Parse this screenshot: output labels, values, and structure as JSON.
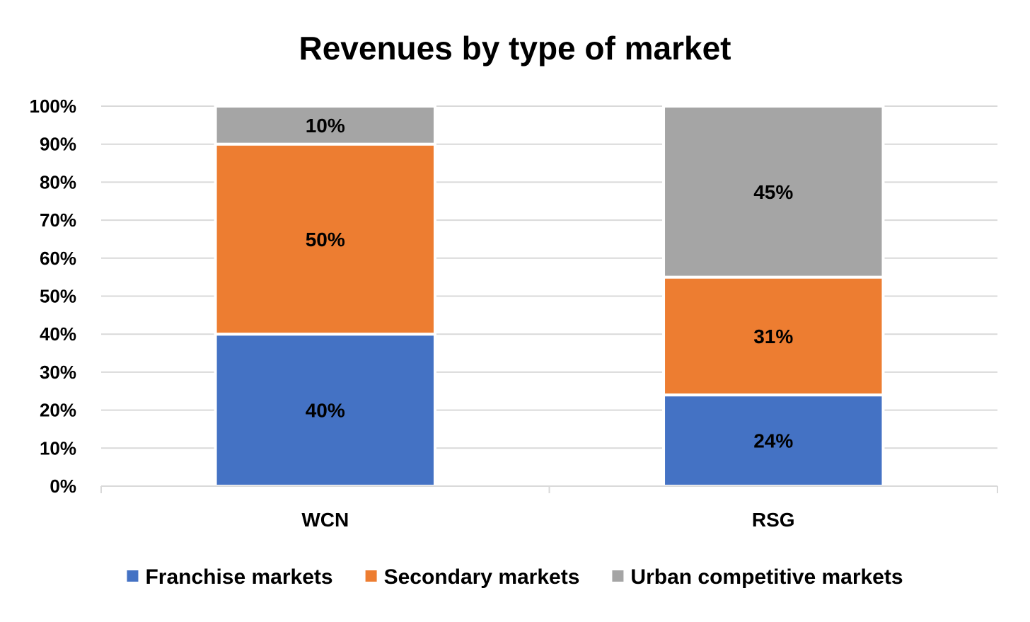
{
  "chart_data": {
    "type": "bar",
    "stacked": true,
    "title": "Revenues by type of market",
    "xlabel": "",
    "ylabel": "",
    "ylim": [
      0,
      100
    ],
    "yticks": [
      "0%",
      "10%",
      "20%",
      "30%",
      "40%",
      "50%",
      "60%",
      "70%",
      "80%",
      "90%",
      "100%"
    ],
    "categories": [
      "WCN",
      "RSG"
    ],
    "series": [
      {
        "name": "Franchise markets",
        "color": "#4472c4",
        "values": [
          40,
          24
        ],
        "labels": [
          "40%",
          "24%"
        ]
      },
      {
        "name": "Secondary markets",
        "color": "#ed7d31",
        "values": [
          50,
          31
        ],
        "labels": [
          "50%",
          "31%"
        ]
      },
      {
        "name": "Urban competitive markets",
        "color": "#a5a5a5",
        "values": [
          10,
          45
        ],
        "labels": [
          "10%",
          "45%"
        ]
      }
    ],
    "grid": true,
    "legend": "bottom"
  }
}
